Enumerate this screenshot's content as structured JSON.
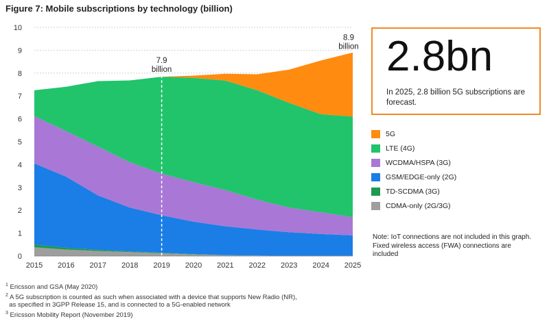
{
  "figure_title": "Figure 7: Mobile subscriptions by technology (billion)",
  "callout": {
    "big": "2.8bn",
    "text": "In 2025, 2.8 billion 5G subscriptions are forecast."
  },
  "annotations": [
    {
      "value": "7.9",
      "unit": "billion",
      "x": 2019,
      "y": 7.9
    },
    {
      "value": "8.9",
      "unit": "billion",
      "x": 2025,
      "y": 8.9
    }
  ],
  "note": "Note: IoT connections are not included in this graph. Fixed wireless access (FWA) connections are included",
  "footnotes": [
    {
      "num": "1",
      "text": "Ericsson and GSA (May 2020)"
    },
    {
      "num": "2",
      "text": "A 5G subscription is counted as such when associated with a device that supports New Radio (NR),"
    },
    {
      "num": "",
      "text": "as specified in 3GPP Release 15, and is connected to a 5G-enabled network"
    },
    {
      "num": "3",
      "text": "Ericsson Mobility Report (November 2019)"
    }
  ],
  "chart_data": {
    "type": "area",
    "stacked": true,
    "x": [
      2015,
      2016,
      2017,
      2018,
      2019,
      2020,
      2021,
      2022,
      2023,
      2024,
      2025
    ],
    "xticks": [
      "2015",
      "2016",
      "2017",
      "2018",
      "2019",
      "2020",
      "2021",
      "2022",
      "2023",
      "2024",
      "2025"
    ],
    "yticks": [
      "0",
      "1",
      "2",
      "3",
      "4",
      "5",
      "6",
      "7",
      "8",
      "9",
      "10"
    ],
    "ylim": [
      0,
      10
    ],
    "grid": true,
    "divider_x": 2019,
    "series": [
      {
        "name": "CDMA-only (2G/3G)",
        "color": "#9e9e9e",
        "values": [
          0.38,
          0.28,
          0.22,
          0.17,
          0.12,
          0.07,
          0.04,
          0.02,
          0.01,
          0.0,
          0.0
        ]
      },
      {
        "name": "TD-SCDMA (3G)",
        "color": "#1f9850",
        "values": [
          0.12,
          0.08,
          0.05,
          0.03,
          0.02,
          0.01,
          0.0,
          0.0,
          0.0,
          0.0,
          0.0
        ]
      },
      {
        "name": "GSM/EDGE-only (2G)",
        "color": "#1a7ee6",
        "values": [
          3.55,
          3.11,
          2.38,
          1.92,
          1.64,
          1.42,
          1.26,
          1.14,
          1.03,
          0.96,
          0.9
        ]
      },
      {
        "name": "WCDMA/HSPA (3G)",
        "color": "#a977d6",
        "values": [
          2.07,
          1.99,
          2.13,
          1.98,
          1.82,
          1.73,
          1.58,
          1.3,
          1.08,
          0.95,
          0.8
        ]
      },
      {
        "name": "LTE (4G)",
        "color": "#21c46b",
        "values": [
          1.13,
          1.94,
          2.87,
          3.58,
          4.24,
          4.56,
          4.79,
          4.79,
          4.58,
          4.29,
          4.4
        ]
      },
      {
        "name": "5G",
        "color": "#ff8c10",
        "values": [
          0.0,
          0.0,
          0.0,
          0.0,
          0.0,
          0.1,
          0.3,
          0.7,
          1.45,
          2.35,
          2.8
        ]
      }
    ],
    "legend_order": [
      "5G",
      "LTE (4G)",
      "WCDMA/HSPA (3G)",
      "GSM/EDGE-only (2G)",
      "TD-SCDMA (3G)",
      "CDMA-only (2G/3G)"
    ]
  }
}
